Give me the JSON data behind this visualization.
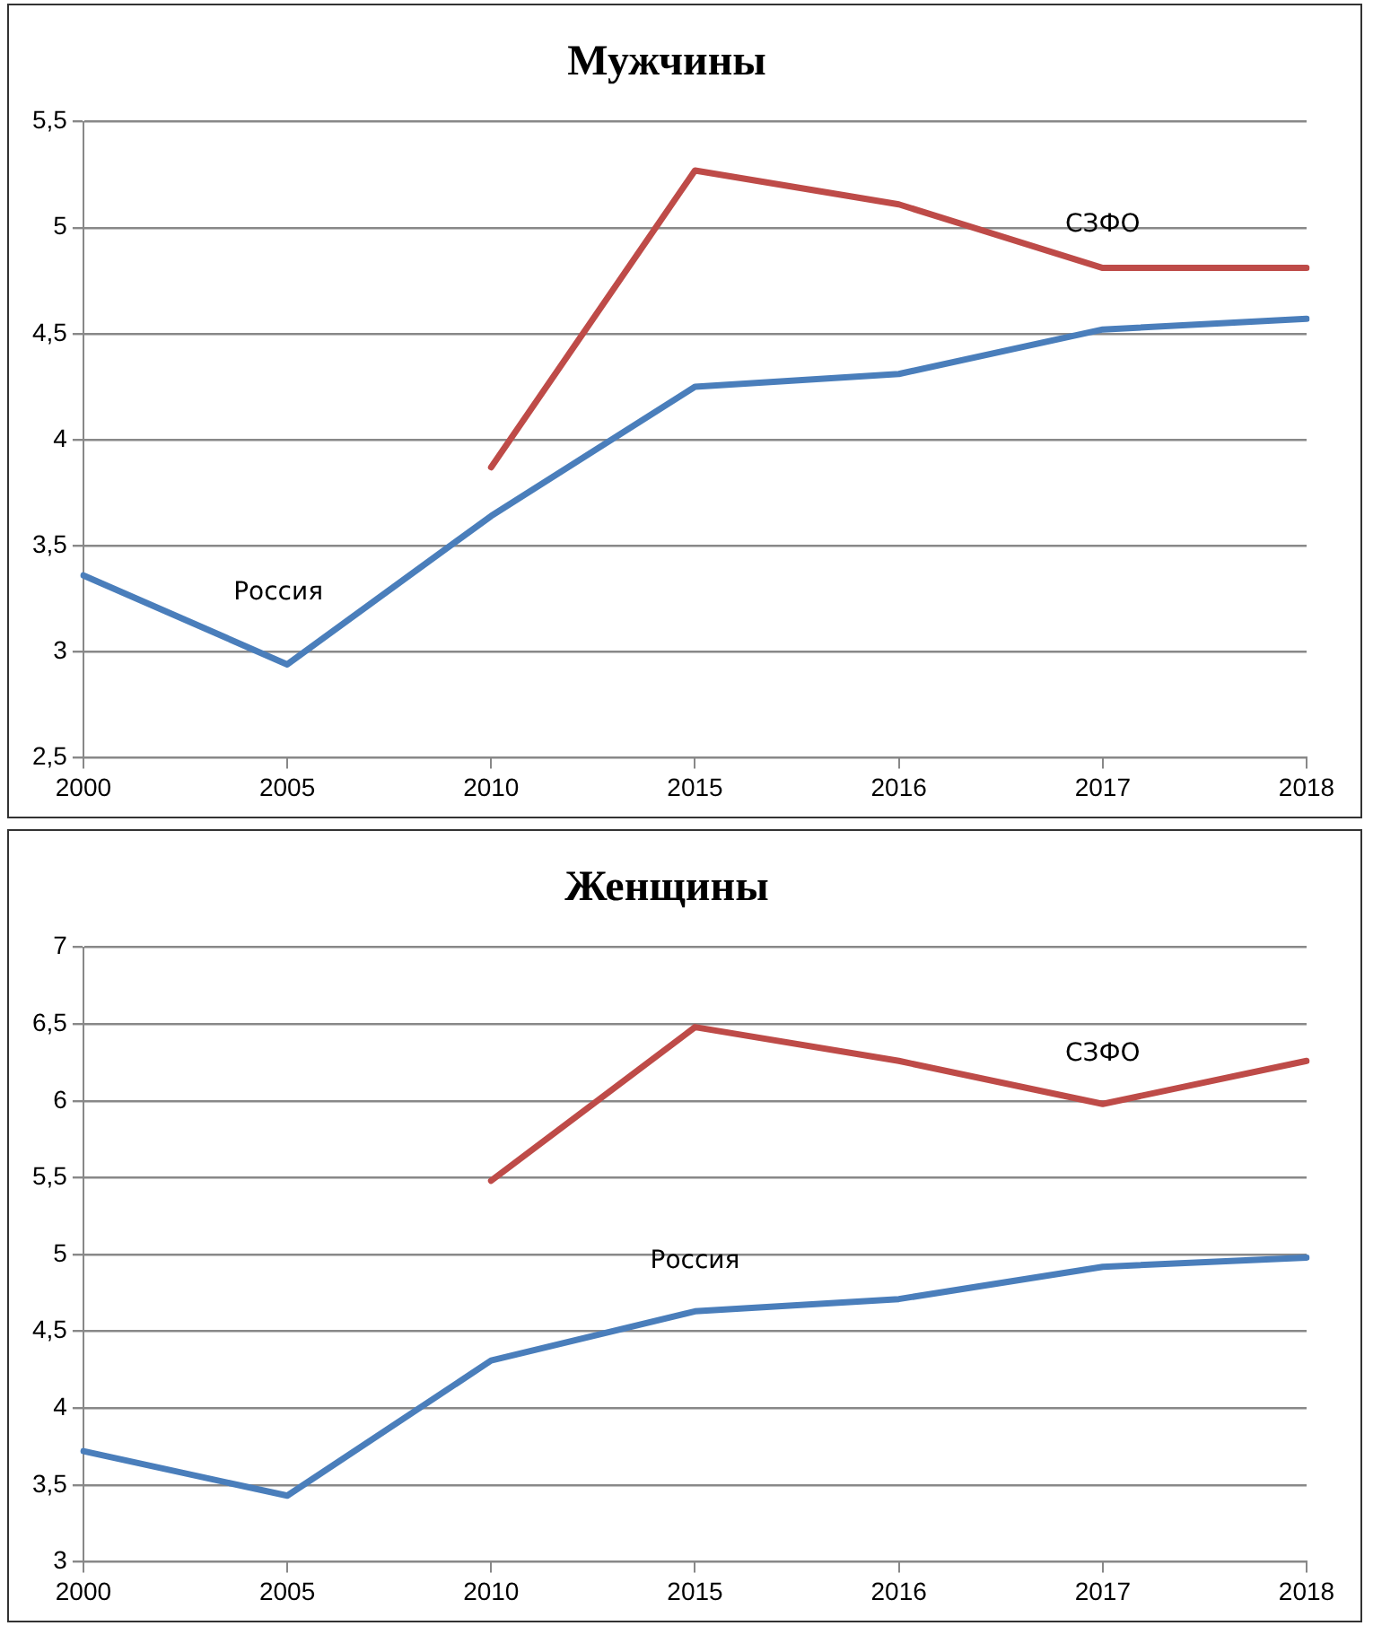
{
  "chart_data": [
    {
      "type": "line",
      "title": "Мужчины",
      "categories": [
        "2000",
        "2005",
        "2010",
        "2015",
        "2016",
        "2017",
        "2018"
      ],
      "series": [
        {
          "name": "Россия",
          "color": "#4a7ebb",
          "values": [
            3.36,
            2.94,
            3.64,
            4.25,
            4.31,
            4.52,
            4.57
          ]
        },
        {
          "name": "СЗФО",
          "color": "#be4b48",
          "values": [
            null,
            null,
            3.87,
            5.27,
            5.11,
            4.81,
            4.81
          ]
        }
      ],
      "ylim": [
        2.5,
        5.5
      ],
      "yticks": [
        {
          "value": 2.5,
          "label": "2,5"
        },
        3,
        {
          "value": 3.5,
          "label": "3,5"
        },
        4,
        {
          "value": 4.5,
          "label": "4,5"
        },
        5,
        {
          "value": 5.5,
          "label": "5,5"
        }
      ],
      "grid": "y",
      "legend": false,
      "marker": "none",
      "line_style": "solid"
    },
    {
      "type": "line",
      "title": "Женщины",
      "categories": [
        "2000",
        "2005",
        "2010",
        "2015",
        "2016",
        "2017",
        "2018"
      ],
      "series": [
        {
          "name": "Россия",
          "color": "#4a7ebb",
          "values": [
            3.72,
            3.43,
            4.31,
            4.63,
            4.71,
            4.92,
            4.98
          ]
        },
        {
          "name": "СЗФО",
          "color": "#be4b48",
          "values": [
            null,
            null,
            5.48,
            6.48,
            6.26,
            5.98,
            6.26
          ]
        }
      ],
      "ylim": [
        3,
        7
      ],
      "yticks": [
        3,
        {
          "value": 3.5,
          "label": "3,5"
        },
        4,
        {
          "value": 4.5,
          "label": "4,5"
        },
        5,
        {
          "value": 5.5,
          "label": "5,5"
        },
        6,
        {
          "value": 6.5,
          "label": "6,5"
        },
        7
      ],
      "grid": "y",
      "legend": false,
      "marker": "none",
      "line_style": "solid"
    }
  ]
}
